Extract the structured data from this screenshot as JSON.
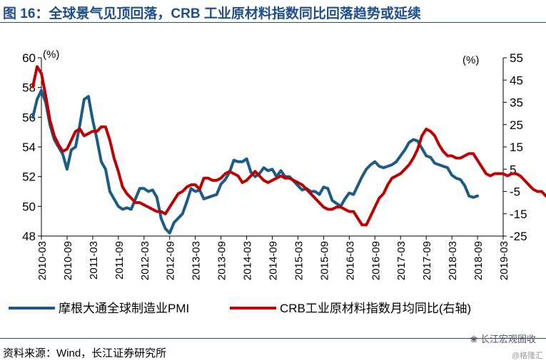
{
  "header": {
    "title": "图 16：全球景气见顶回落，CRB 工业原材料指数同比回落趋势或延续"
  },
  "footer": {
    "source": "资料来源：Wind，长江证券研究所",
    "watermark": "长江宏观固收",
    "watermark2": "@格隆汇"
  },
  "chart_data": {
    "type": "line",
    "title": "图 16：全球景气见顶回落，CRB 工业原材料指数同比回落趋势或延续",
    "left_unit": "(%)",
    "right_unit": "(%)",
    "y_left_lim": [
      48,
      60
    ],
    "y_left_ticks": [
      48,
      50,
      52,
      54,
      56,
      58,
      60
    ],
    "y_right_lim": [
      -25,
      55
    ],
    "y_right_ticks": [
      -25,
      -15,
      -5,
      5,
      15,
      25,
      35,
      45,
      55
    ],
    "x_tick_labels": [
      "2010-03",
      "2010-09",
      "2011-03",
      "2011-09",
      "2012-03",
      "2012-09",
      "2013-03",
      "2013-09",
      "2014-03",
      "2014-09",
      "2015-03",
      "2015-09",
      "2016-03",
      "2016-09",
      "2017-03",
      "2017-09",
      "2018-03",
      "2018-09",
      "2019-03"
    ],
    "grid": false,
    "legend_position": "bottom",
    "series": [
      {
        "name": "摩根大通全球制造业PMI",
        "axis": "left",
        "color": "#1b5b86",
        "start": "2010-01",
        "values": [
          56.0,
          57.2,
          57.8,
          57.0,
          55.5,
          54.5,
          54.0,
          53.5,
          52.5,
          53.8,
          54.0,
          55.5,
          57.2,
          57.4,
          55.8,
          54.5,
          53.0,
          52.5,
          51.0,
          50.5,
          50.0,
          49.8,
          49.9,
          49.8,
          50.5,
          51.2,
          51.2,
          51.0,
          51.1,
          50.6,
          49.2,
          48.5,
          48.2,
          48.9,
          49.2,
          49.5,
          50.3,
          51.2,
          51.0,
          51.1,
          50.5,
          50.6,
          50.7,
          50.8,
          51.5,
          51.8,
          52.3,
          53.1,
          53.0,
          53.0,
          53.2,
          52.3,
          52.0,
          52.2,
          52.6,
          52.4,
          52.5,
          52.0,
          52.4,
          52.0,
          52.0,
          51.7,
          51.4,
          51.1,
          51.2,
          51.0,
          51.0,
          50.8,
          51.3,
          51.2,
          50.4,
          50.2,
          50.0,
          50.5,
          50.9,
          50.8,
          51.4,
          52.0,
          52.5,
          52.8,
          53.0,
          52.7,
          52.6,
          52.7,
          52.8,
          53.0,
          53.4,
          53.8,
          54.3,
          54.5,
          54.4,
          53.9,
          53.4,
          53.3,
          52.9,
          52.8,
          52.7,
          52.6,
          52.1,
          51.9,
          51.8,
          51.4,
          50.7,
          50.6,
          50.7
        ]
      },
      {
        "name": "CRB工业原材料指数月均同比(右轴)",
        "axis": "right",
        "color": "#c00000",
        "start": "2010-01",
        "values": [
          42,
          51,
          48,
          38,
          27,
          20,
          16,
          13,
          14,
          18,
          22,
          23,
          20,
          21,
          22,
          22,
          24,
          24,
          18,
          10,
          4,
          -3,
          -6,
          -8,
          -10,
          -10,
          -11,
          -12,
          -13,
          -14,
          -14,
          -15,
          -12,
          -9,
          -6,
          -5,
          -3,
          -2,
          -2,
          -4,
          1,
          1,
          0,
          0,
          1,
          3,
          4,
          3,
          2,
          -1,
          0,
          2,
          4,
          2,
          0,
          -1,
          0,
          1,
          2,
          1,
          1,
          0,
          -1,
          -2,
          -4,
          -6,
          -8,
          -10,
          -12,
          -13,
          -13,
          -12,
          -12,
          -13,
          -14,
          -14,
          -17,
          -20,
          -20,
          -16,
          -12,
          -8,
          -6,
          -2,
          1,
          2,
          3,
          5,
          7,
          10,
          14,
          20,
          23,
          22,
          20,
          16,
          13,
          11,
          11,
          10,
          10,
          11,
          12,
          12,
          9,
          6,
          3,
          2,
          3,
          3,
          3,
          2,
          3,
          3,
          2,
          0,
          -2,
          -4,
          -5,
          -5,
          -7,
          -8,
          -6,
          -6
        ]
      }
    ]
  }
}
